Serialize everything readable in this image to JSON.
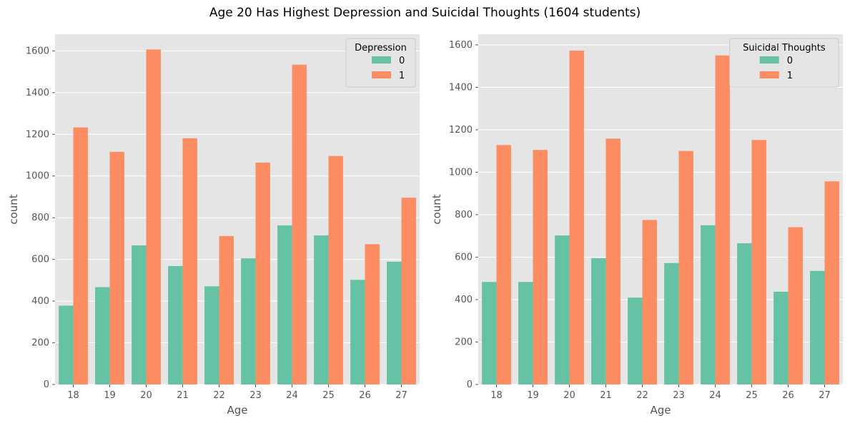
{
  "figure": {
    "title": "Age 20 Has Highest Depression and Suicidal Thoughts (1604 students)"
  },
  "colors": {
    "panel_bg": "#e5e5e5",
    "grid": "#ffffff",
    "series_0": "#66c2a5",
    "series_1": "#fc8d62"
  },
  "chart_data": [
    {
      "type": "bar",
      "title": "",
      "xlabel": "Age",
      "ylabel": "count",
      "categories": [
        "18",
        "19",
        "20",
        "21",
        "22",
        "23",
        "24",
        "25",
        "26",
        "27"
      ],
      "legend_title": "Depression",
      "legend_position": "upper right",
      "grid": true,
      "ylim": [
        0,
        1680
      ],
      "yticks": [
        0,
        200,
        400,
        600,
        800,
        1000,
        1200,
        1400,
        1600
      ],
      "series": [
        {
          "name": "0",
          "values": [
            378,
            467,
            667,
            568,
            471,
            605,
            763,
            715,
            502,
            589
          ]
        },
        {
          "name": "1",
          "values": [
            1233,
            1116,
            1607,
            1181,
            712,
            1064,
            1534,
            1096,
            673,
            896
          ]
        }
      ]
    },
    {
      "type": "bar",
      "title": "",
      "xlabel": "Age",
      "ylabel": "count",
      "categories": [
        "18",
        "19",
        "20",
        "21",
        "22",
        "23",
        "24",
        "25",
        "26",
        "27"
      ],
      "legend_title": "Suicidal Thoughts",
      "legend_position": "upper right",
      "grid": true,
      "ylim": [
        0,
        1650
      ],
      "yticks": [
        0,
        200,
        400,
        600,
        800,
        1000,
        1200,
        1400,
        1600
      ],
      "series": [
        {
          "name": "0",
          "values": [
            483,
            483,
            702,
            595,
            409,
            572,
            750,
            665,
            437,
            535
          ]
        },
        {
          "name": "1",
          "values": [
            1128,
            1105,
            1573,
            1158,
            775,
            1100,
            1550,
            1152,
            741,
            957
          ]
        }
      ]
    }
  ]
}
